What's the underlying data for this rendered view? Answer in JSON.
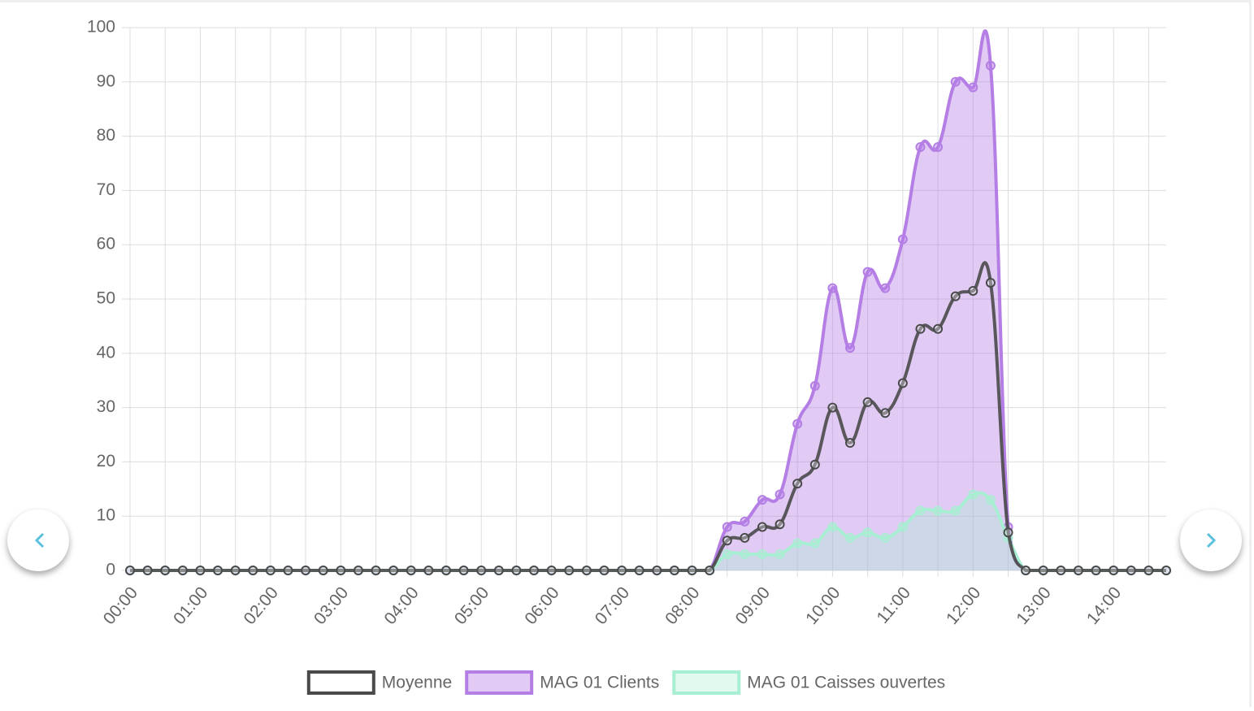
{
  "chart_data": {
    "type": "line",
    "categories": [
      "00:00",
      null,
      null,
      null,
      "01:00",
      null,
      null,
      null,
      "02:00",
      null,
      null,
      null,
      "03:00",
      null,
      null,
      null,
      "04:00",
      null,
      null,
      null,
      "05:00",
      null,
      null,
      null,
      "06:00",
      null,
      null,
      null,
      "07:00",
      null,
      null,
      null,
      "08:00",
      null,
      null,
      null,
      "09:00",
      null,
      null,
      null,
      "10:00",
      null,
      null,
      null,
      "11:00",
      null,
      null,
      null,
      "12:00",
      null,
      null,
      null,
      "13:00",
      null,
      null,
      null,
      "14:00",
      null,
      null,
      null
    ],
    "series": [
      {
        "name": "Moyenne",
        "color": "#4a4a4a",
        "fill": null,
        "values": [
          0,
          0,
          0,
          0,
          0,
          0,
          0,
          0,
          0,
          0,
          0,
          0,
          0,
          0,
          0,
          0,
          0,
          0,
          0,
          0,
          0,
          0,
          0,
          0,
          0,
          0,
          0,
          0,
          0,
          0,
          0,
          0,
          0,
          0,
          5.5,
          6,
          8,
          8.5,
          16,
          19.5,
          30,
          23.5,
          31,
          29,
          34.5,
          44.5,
          44.5,
          50.5,
          51.5,
          53,
          7,
          0,
          0,
          0,
          0,
          0,
          0,
          0,
          0,
          0
        ]
      },
      {
        "name": "MAG 01 Clients",
        "color": "#b47ee5",
        "fill": "rgba(180,126,229,0.4)",
        "values": [
          0,
          0,
          0,
          0,
          0,
          0,
          0,
          0,
          0,
          0,
          0,
          0,
          0,
          0,
          0,
          0,
          0,
          0,
          0,
          0,
          0,
          0,
          0,
          0,
          0,
          0,
          0,
          0,
          0,
          0,
          0,
          0,
          0,
          0,
          8,
          9,
          13,
          14,
          27,
          34,
          52,
          41,
          55,
          52,
          61,
          78,
          78,
          90,
          89,
          93,
          8,
          0,
          0,
          0,
          0,
          0,
          0,
          0,
          0,
          0
        ]
      },
      {
        "name": "MAG 01 Caisses ouvertes",
        "color": "#a8eed2",
        "fill": "rgba(168,238,210,0.35)",
        "values": [
          0,
          0,
          0,
          0,
          0,
          0,
          0,
          0,
          0,
          0,
          0,
          0,
          0,
          0,
          0,
          0,
          0,
          0,
          0,
          0,
          0,
          0,
          0,
          0,
          0,
          0,
          0,
          0,
          0,
          0,
          0,
          0,
          0,
          0,
          3,
          3,
          3,
          3,
          5,
          5,
          8,
          6,
          7,
          6,
          8,
          11,
          11,
          11,
          14,
          13,
          6,
          0,
          0,
          0,
          0,
          0,
          0,
          0,
          0,
          0
        ]
      }
    ],
    "ylim": [
      0,
      100
    ],
    "yticks": [
      0,
      10,
      20,
      30,
      40,
      50,
      60,
      70,
      80,
      90,
      100
    ],
    "grid": true,
    "legend": "bottom"
  }
}
